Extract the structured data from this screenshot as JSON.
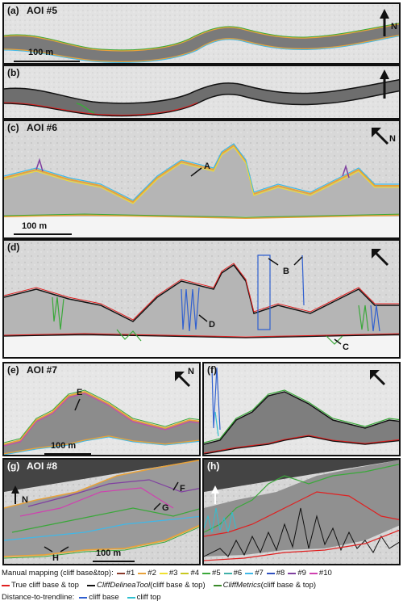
{
  "panels": {
    "a": {
      "label": "(a)",
      "aoi": "AOI #5",
      "scale": "100 m",
      "north": "N"
    },
    "b": {
      "label": "(b)"
    },
    "c": {
      "label": "(c)",
      "aoi": "AOI #6",
      "scale": "100 m",
      "north": "N",
      "annotation": "A"
    },
    "d": {
      "label": "(d)",
      "annotations": [
        "B",
        "D",
        "C"
      ]
    },
    "e": {
      "label": "(e)",
      "aoi": "AOI #7",
      "scale": "100 m",
      "north": "N",
      "annotation": "E"
    },
    "f": {
      "label": "(f)"
    },
    "g": {
      "label": "(g)",
      "aoi": "AOI #8",
      "scale": "100 m",
      "north": "N",
      "annotations": [
        "F",
        "G",
        "H"
      ]
    },
    "h": {
      "label": "(h)"
    }
  },
  "legend": {
    "row1_title": "Manual mapping (cliff base&top):",
    "manual": [
      {
        "label": "#1",
        "color": "#8b3a2b"
      },
      {
        "label": "#2",
        "color": "#e8a23a"
      },
      {
        "label": "#3",
        "color": "#f0e030"
      },
      {
        "label": "#4",
        "color": "#c8c820"
      },
      {
        "label": "#5",
        "color": "#3aa83a"
      },
      {
        "label": "#6",
        "color": "#40b0a8"
      },
      {
        "label": "#7",
        "color": "#40b8e8"
      },
      {
        "label": "#8",
        "color": "#3050c0"
      },
      {
        "label": "#9",
        "color": "#8040a0"
      },
      {
        "label": "#10",
        "color": "#d040b0"
      }
    ],
    "row2": [
      {
        "label": "True cliff base & top",
        "color": "#e02020",
        "italic_part": "",
        "suffix": ""
      },
      {
        "label": "",
        "color": "#111111",
        "italic_part": "CliffDelineaTool",
        "suffix": " (cliff base & top)"
      },
      {
        "label": "",
        "color": "#3a8a2a",
        "italic_part": "CliffMetrics",
        "suffix": " (cliff base & top)"
      }
    ],
    "row3_title": "Distance-to-trendline:",
    "row3": [
      {
        "label": "cliff base",
        "color": "#3060d0"
      },
      {
        "label": "cliff top",
        "color": "#30c0d0"
      }
    ]
  }
}
